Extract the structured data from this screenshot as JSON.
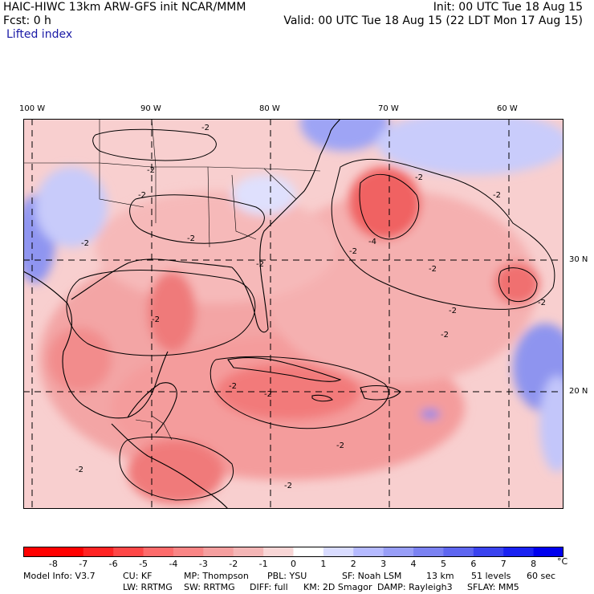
{
  "header": {
    "title_left": "HAIC-HIWC 13km ARW-GFS init   NCAR/MMM",
    "init": "Init: 00 UTC Tue 18 Aug 15",
    "fcst": "Fcst:    0 h",
    "valid": "Valid: 00 UTC Tue 18 Aug 15 (22 LDT Mon 17 Aug 15)",
    "field": "Lifted index"
  },
  "map": {
    "lon_labels": [
      "100 W",
      "90 W",
      "80 W",
      "70 W",
      "60 W"
    ],
    "lat_labels": [
      "30 N",
      "20 N"
    ],
    "contour_label": "-2",
    "contour_label_min": "-4"
  },
  "colorbar": {
    "unit": "°C",
    "ticks": [
      "-8",
      "-7",
      "-6",
      "-5",
      "-4",
      "-3",
      "-2",
      "-1",
      "0",
      "1",
      "2",
      "3",
      "4",
      "5",
      "6",
      "7",
      "8"
    ],
    "colors": [
      "#ff0000",
      "#ff2323",
      "#fe4747",
      "#fd6b6b",
      "#f98585",
      "#f59f9f",
      "#f4b6b6",
      "#f8d6d6",
      "#ffffff",
      "#d9dcff",
      "#b5baff",
      "#989ef7",
      "#7b82f2",
      "#5e66f0",
      "#3a43ef",
      "#1a22f2",
      "#0000ee"
    ]
  },
  "footer": {
    "line1": [
      "Model Info: V3.7",
      "CU: KF",
      "MP: Thompson",
      "PBL: YSU",
      "SF: Noah LSM",
      "13 km",
      "51 levels",
      "60 sec"
    ],
    "line2": [
      "LW: RRTMG",
      "SW: RRTMG",
      "DIFF: full",
      "KM: 2D Smagor",
      "DAMP: Rayleigh3",
      "SFLAY: MM5"
    ]
  }
}
